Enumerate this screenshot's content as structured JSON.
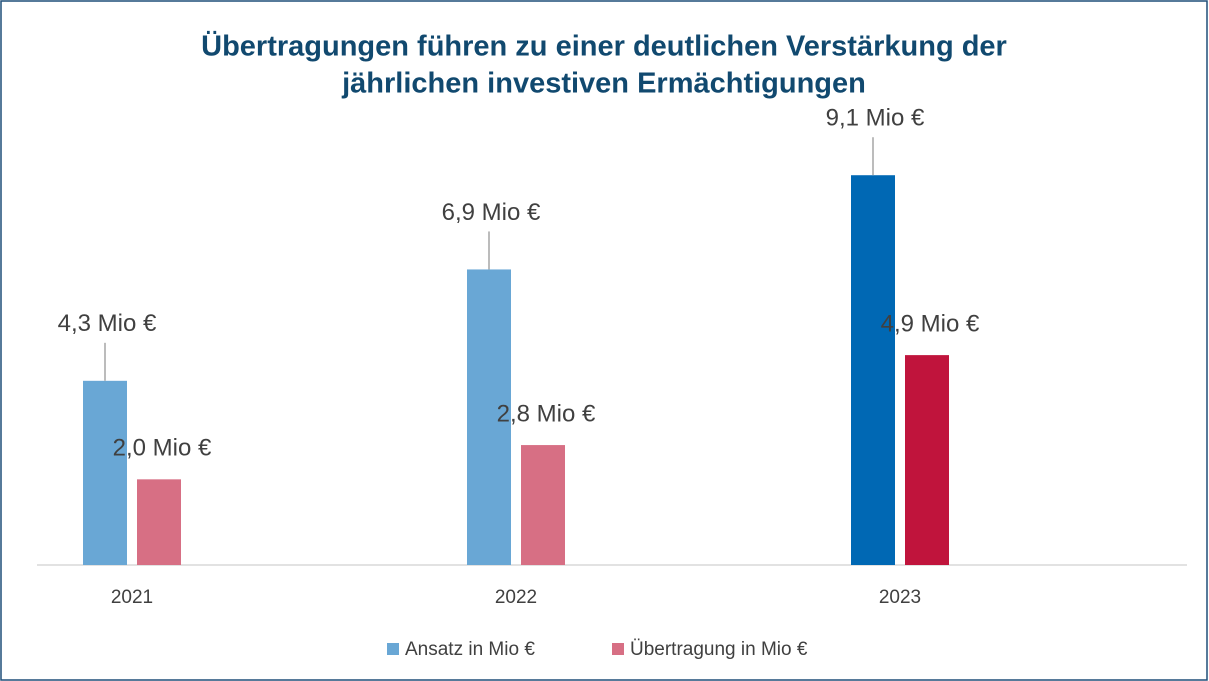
{
  "chart_data": {
    "type": "bar",
    "title": [
      "Übertragungen führen zu einer deutlichen Verstärkung der",
      "jährlichen investiven Ermächtigungen"
    ],
    "categories": [
      "2021",
      "2022",
      "2023"
    ],
    "series": [
      {
        "name": "Ansatz in Mio €",
        "color": "#69a7d5",
        "colors": [
          "#69a7d5",
          "#69a7d5",
          "#0068b4"
        ],
        "values": [
          4.3,
          6.9,
          9.1
        ],
        "value_labels": [
          "4,3 Mio €",
          "6,9 Mio €",
          "9,1 Mio €"
        ]
      },
      {
        "name": "Übertragung in Mio €",
        "color": "#d76f84",
        "colors": [
          "#d76f84",
          "#d76f84",
          "#c0143c"
        ],
        "values": [
          2.0,
          2.8,
          4.9
        ],
        "value_labels": [
          "2,0 Mio €",
          "2,8 Mio €",
          "4,9 Mio €"
        ]
      }
    ],
    "ylim": [
      0,
      12
    ],
    "legend": "bottom"
  }
}
